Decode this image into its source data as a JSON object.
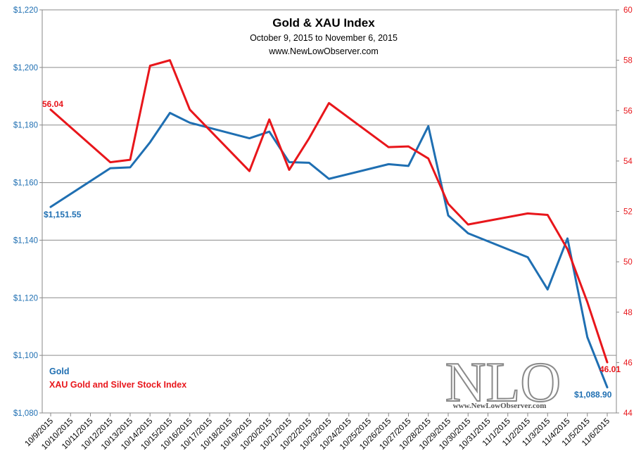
{
  "chart_data": {
    "type": "line",
    "title": "Gold & XAU Index",
    "subtitle": "October 9, 2015  to November 6, 2015",
    "website": "www.NewLowObserver.com",
    "categories": [
      "10/9/2015",
      "10/10/2015",
      "10/11/2015",
      "10/12/2015",
      "10/13/2015",
      "10/14/2015",
      "10/15/2015",
      "10/16/2015",
      "10/17/2015",
      "10/18/2015",
      "10/19/2015",
      "10/20/2015",
      "10/21/2015",
      "10/22/2015",
      "10/23/2015",
      "10/24/2015",
      "10/25/2015",
      "10/26/2015",
      "10/27/2015",
      "10/28/2015",
      "10/29/2015",
      "10/30/2015",
      "10/31/2015",
      "11/1/2015",
      "11/2/2015",
      "11/3/2015",
      "11/4/2015",
      "11/5/2015",
      "11/6/2015"
    ],
    "left_axis": {
      "ylim": [
        1080,
        1220
      ],
      "ticks": [
        1080,
        1100,
        1120,
        1140,
        1160,
        1180,
        1200,
        1220
      ],
      "tick_labels": [
        "$1,080",
        "$1,100",
        "$1,120",
        "$1,140",
        "$1,160",
        "$1,180",
        "$1,200",
        "$1,220"
      ],
      "color": "#1f6fb2"
    },
    "right_axis": {
      "ylim": [
        44,
        60
      ],
      "ticks": [
        44,
        46,
        48,
        50,
        52,
        54,
        56,
        58,
        60
      ],
      "tick_labels": [
        "44",
        "46",
        "48",
        "50",
        "52",
        "54",
        "56",
        "58",
        "60"
      ],
      "color": "#e8161b"
    },
    "gridlines": true,
    "series": [
      {
        "name": "Gold",
        "axis": "left",
        "color": "#1f6fb2",
        "points": [
          {
            "x": "10/9/2015",
            "y": 1151.55
          },
          {
            "x": "10/12/2015",
            "y": 1165.0
          },
          {
            "x": "10/13/2015",
            "y": 1165.3
          },
          {
            "x": "10/14/2015",
            "y": 1174.0
          },
          {
            "x": "10/15/2015",
            "y": 1184.2
          },
          {
            "x": "10/16/2015",
            "y": 1180.8
          },
          {
            "x": "10/19/2015",
            "y": 1175.4
          },
          {
            "x": "10/20/2015",
            "y": 1177.7
          },
          {
            "x": "10/21/2015",
            "y": 1167.1
          },
          {
            "x": "10/22/2015",
            "y": 1166.9
          },
          {
            "x": "10/23/2015",
            "y": 1161.3
          },
          {
            "x": "10/26/2015",
            "y": 1166.4
          },
          {
            "x": "10/27/2015",
            "y": 1165.8
          },
          {
            "x": "10/28/2015",
            "y": 1179.6
          },
          {
            "x": "10/29/2015",
            "y": 1148.6
          },
          {
            "x": "10/30/2015",
            "y": 1142.4
          },
          {
            "x": "11/2/2015",
            "y": 1134.1
          },
          {
            "x": "11/3/2015",
            "y": 1122.9
          },
          {
            "x": "11/4/2015",
            "y": 1140.6
          },
          {
            "x": "11/5/2015",
            "y": 1106.3
          },
          {
            "x": "11/6/2015",
            "y": 1088.9
          }
        ]
      },
      {
        "name": "XAU Gold and Silver Stock Index",
        "axis": "right",
        "color": "#e8161b",
        "points": [
          {
            "x": "10/9/2015",
            "y": 56.04
          },
          {
            "x": "10/12/2015",
            "y": 53.95
          },
          {
            "x": "10/13/2015",
            "y": 54.05
          },
          {
            "x": "10/14/2015",
            "y": 57.78
          },
          {
            "x": "10/15/2015",
            "y": 58.0
          },
          {
            "x": "10/16/2015",
            "y": 56.04
          },
          {
            "x": "10/19/2015",
            "y": 53.6
          },
          {
            "x": "10/20/2015",
            "y": 55.65
          },
          {
            "x": "10/21/2015",
            "y": 53.65
          },
          {
            "x": "10/22/2015",
            "y": 54.9
          },
          {
            "x": "10/23/2015",
            "y": 56.3
          },
          {
            "x": "10/26/2015",
            "y": 54.55
          },
          {
            "x": "10/27/2015",
            "y": 54.58
          },
          {
            "x": "10/28/2015",
            "y": 54.1
          },
          {
            "x": "10/29/2015",
            "y": 52.3
          },
          {
            "x": "10/30/2015",
            "y": 51.48
          },
          {
            "x": "11/2/2015",
            "y": 51.92
          },
          {
            "x": "11/3/2015",
            "y": 51.86
          },
          {
            "x": "11/4/2015",
            "y": 50.5
          },
          {
            "x": "11/5/2015",
            "y": 48.4
          },
          {
            "x": "11/6/2015",
            "y": 46.01
          }
        ]
      }
    ],
    "data_labels": [
      {
        "series": "Gold",
        "x": "10/9/2015",
        "text": "$1,151.55"
      },
      {
        "series": "Gold",
        "x": "11/6/2015",
        "text": "$1,088.90"
      },
      {
        "series": "XAU Gold and Silver Stock Index",
        "x": "10/9/2015",
        "text": "56.04"
      },
      {
        "series": "XAU Gold and Silver Stock Index",
        "x": "11/6/2015",
        "text": "46.01"
      }
    ],
    "legend": {
      "position": "bottom-left",
      "entries": [
        "Gold",
        "XAU Gold and Silver Stock Index"
      ]
    },
    "watermark": {
      "text": "NLO",
      "subtext": "www.NewLowObserver.com"
    }
  }
}
